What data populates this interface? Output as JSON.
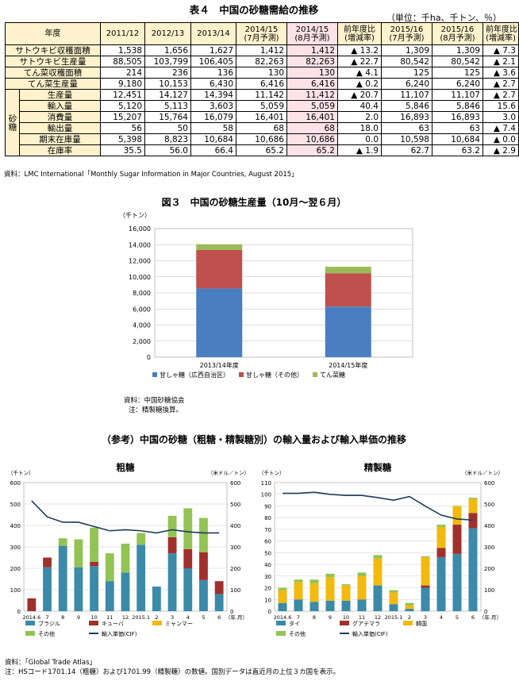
{
  "table": {
    "title": "表４　中国の砂糖需給の推移",
    "unit": "（単位：千ha、千トン、％）",
    "col_header": "年度",
    "columns": [
      "2011/12",
      "2012/13",
      "2013/14",
      "2014/15\n(7月予測)",
      "2014/15\n(8月予測)",
      "前年度比\n(増減率)",
      "2015/16\n(7月予測)",
      "2015/16\n(8月予測)",
      "前年度比\n(増減率)"
    ],
    "group_label": "砂糖",
    "rows": [
      {
        "label": "サトウキビ収穫面積",
        "values": [
          "1,538",
          "1,656",
          "1,627",
          "1,412",
          "1,412",
          "▲ 13.2",
          "1,309",
          "1,309",
          "▲ 7.3"
        ]
      },
      {
        "label": "サトウキビ生産量",
        "values": [
          "88,505",
          "103,799",
          "106,405",
          "82,263",
          "82,263",
          "▲ 22.7",
          "80,542",
          "80,542",
          "▲ 2.1"
        ]
      },
      {
        "label": "てん菜収穫面積",
        "values": [
          "214",
          "236",
          "136",
          "130",
          "130",
          "▲ 4.1",
          "125",
          "125",
          "▲ 3.6"
        ]
      },
      {
        "label": "てん菜生産量",
        "values": [
          "9,180",
          "10,153",
          "6,430",
          "6,416",
          "6,416",
          "▲ 0.2",
          "6,240",
          "6,240",
          "▲ 2.7"
        ]
      },
      {
        "label": "生産量",
        "values": [
          "12,451",
          "14,127",
          "14,394",
          "11,142",
          "11,412",
          "▲ 20.7",
          "11,107",
          "11,107",
          "▲ 2.7"
        ]
      },
      {
        "label": "輸入量",
        "values": [
          "5,120",
          "5,113",
          "3,603",
          "5,059",
          "5,059",
          "40.4",
          "5,846",
          "5,846",
          "15.6"
        ]
      },
      {
        "label": "消費量",
        "values": [
          "15,207",
          "15,764",
          "16,079",
          "16,401",
          "16,401",
          "2.0",
          "16,893",
          "16,893",
          "3.0"
        ]
      },
      {
        "label": "輸出量",
        "values": [
          "56",
          "50",
          "58",
          "68",
          "68",
          "18.0",
          "63",
          "63",
          "▲ 7.4"
        ]
      },
      {
        "label": "期末在庫量",
        "values": [
          "5,398",
          "8,823",
          "10,684",
          "10,686",
          "10,686",
          "0.0",
          "10,598",
          "10,684",
          "▲ 0.0"
        ]
      },
      {
        "label": "在庫率",
        "values": [
          "35.5",
          "56.0",
          "66.4",
          "65.2",
          "65.2",
          "▲ 1.9",
          "62.7",
          "63.2",
          "▲ 2.9"
        ]
      }
    ],
    "source": "資料：LMC International「Monthly Sugar Information in Major Countries, August 2015」"
  },
  "fig3": {
    "title": "図３　中国の砂糖生産量（10月～翌６月）",
    "source1": "資料：中国砂糖協会",
    "source2": "注：精製糖換算。"
  },
  "ref_title": "（参考）中国の砂糖（粗糖・精製糖別）の輸入量および輸入単価の推移",
  "footer": {
    "source": "資料：「Global Trade Atlas」",
    "note": "注：HSコード1701.14（粗糖）および1701.99（精製糖）の数値。国別データは直近月の上位３カ国を表示。"
  },
  "colors": {
    "brazil": "#3a8aa8",
    "cuba": "#a0302c",
    "myanmar": "#f2b90f",
    "other_green": "#92c354",
    "guangxi": "#4a7ec0",
    "other_red": "#c0504d",
    "beet": "#9bbb59",
    "thai": "#3a8aa8",
    "guatemala": "#a0302c",
    "korea": "#f2b90f",
    "line": "#1f3b5a"
  },
  "chart_data": [
    {
      "type": "bar",
      "stacked": true,
      "title": "",
      "ylabel": "（千トン）",
      "ylim": [
        0,
        16000
      ],
      "yticks": [
        "0",
        "2,000",
        "4,000",
        "6,000",
        "8,000",
        "10,000",
        "12,000",
        "14,000",
        "16,000"
      ],
      "categories": [
        "2013/14年度",
        "2014/15年度"
      ],
      "series": [
        {
          "name": "甘しゃ糖（広西自治区）",
          "values": [
            8550,
            6300
          ],
          "color": "#4a7ec0"
        },
        {
          "name": "甘しゃ糖（その他）",
          "values": [
            4800,
            4150
          ],
          "color": "#c0504d"
        },
        {
          "name": "てん菜糖",
          "values": [
            700,
            800
          ],
          "color": "#9bbb59"
        }
      ],
      "grid": true,
      "legend": "bottom"
    },
    {
      "type": "bar",
      "stacked": true,
      "title": "粗糖",
      "ylabel_left": "（千トン）",
      "ylabel_right": "（米ドル／トン）",
      "xunit": "（年.月）",
      "ylim": [
        0,
        600
      ],
      "ylim_right": [
        0,
        600
      ],
      "yticks": [
        "0",
        "100",
        "200",
        "300",
        "400",
        "500",
        "600"
      ],
      "categories": [
        "2014.6",
        "7",
        "8",
        "9",
        "10",
        "11",
        "12",
        "2015.1",
        "2",
        "3",
        "4",
        "5",
        "6"
      ],
      "series": [
        {
          "name": "ブラジル",
          "values": [
            0,
            205,
            305,
            205,
            210,
            140,
            180,
            310,
            115,
            270,
            200,
            145,
            80
          ],
          "color": "#3a8aa8"
        },
        {
          "name": "キューバ",
          "values": [
            60,
            45,
            0,
            0,
            20,
            0,
            0,
            0,
            0,
            75,
            90,
            130,
            60
          ],
          "color": "#a0302c"
        },
        {
          "name": "ミャンマー",
          "values": [
            0,
            0,
            0,
            0,
            0,
            0,
            0,
            0,
            0,
            0,
            0,
            0,
            0
          ],
          "color": "#f2b90f"
        },
        {
          "name": "その他",
          "values": [
            0,
            0,
            35,
            130,
            160,
            130,
            135,
            55,
            0,
            100,
            190,
            160,
            0
          ],
          "color": "#92c354"
        }
      ],
      "line": {
        "name": "輸入単価(CIF)",
        "axis": "right",
        "values": [
          515,
          440,
          415,
          415,
          395,
          375,
          380,
          375,
          365,
          380,
          370,
          365,
          365
        ]
      },
      "grid": true,
      "legend": "bottom"
    },
    {
      "type": "bar",
      "stacked": true,
      "title": "精製糖",
      "ylabel_left": "（千トン）",
      "ylabel_right": "（米ドル／トン）",
      "xunit": "（年.月）",
      "ylim": [
        0,
        110
      ],
      "ylim_right": [
        0,
        600
      ],
      "yticks": [
        "0",
        "10",
        "20",
        "30",
        "40",
        "50",
        "60",
        "70",
        "80",
        "90",
        "100",
        "110"
      ],
      "yticks_right": [
        "0",
        "100",
        "200",
        "300",
        "400",
        "500",
        "600"
      ],
      "categories": [
        "2014.6",
        "7",
        "8",
        "9",
        "10",
        "11",
        "12",
        "2015.1",
        "2",
        "3",
        "4",
        "5",
        "6"
      ],
      "series": [
        {
          "name": "タイ",
          "values": [
            7,
            10,
            8,
            9,
            9,
            10,
            22,
            6,
            2,
            20,
            46,
            49,
            71
          ],
          "color": "#3a8aa8"
        },
        {
          "name": "グアテマラ",
          "values": [
            0,
            0,
            0,
            0,
            0,
            0,
            0,
            0,
            0,
            2,
            8,
            25,
            13
          ],
          "color": "#a0302c"
        },
        {
          "name": "韓国",
          "values": [
            11,
            15,
            16,
            20,
            13,
            20,
            23,
            10,
            3,
            24,
            18,
            16,
            12
          ],
          "color": "#f2b90f"
        },
        {
          "name": "その他",
          "values": [
            2,
            2,
            3,
            3,
            1,
            3,
            3,
            2,
            2,
            1,
            2,
            0,
            1
          ],
          "color": "#92c354"
        }
      ],
      "line": {
        "name": "輸入単価(CIF)",
        "axis": "right",
        "values": [
          550,
          550,
          555,
          545,
          540,
          540,
          530,
          518,
          535,
          490,
          448,
          430,
          425
        ]
      },
      "grid": true,
      "legend": "bottom"
    }
  ]
}
